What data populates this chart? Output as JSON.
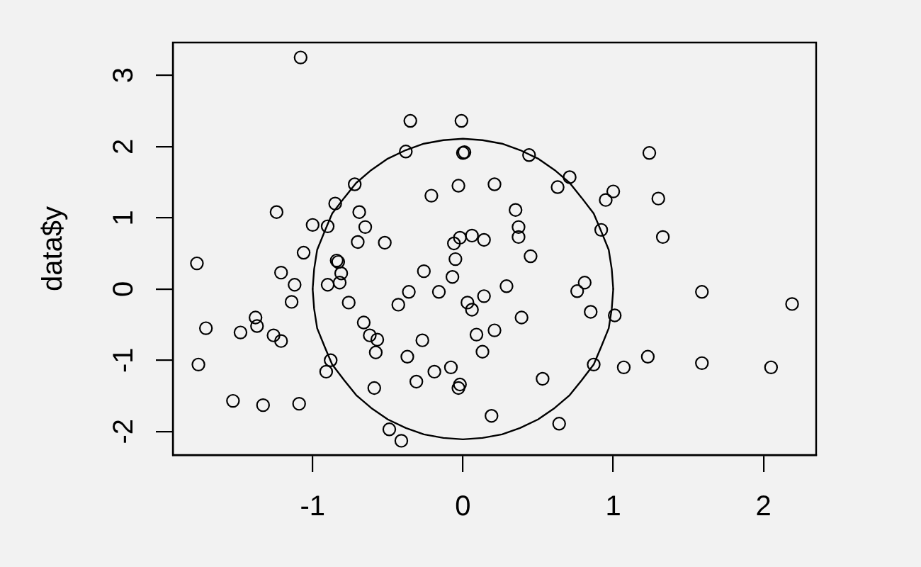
{
  "chart_data": {
    "type": "scatter",
    "ylabel": "data$y",
    "xlim": [
      -1.93,
      2.35
    ],
    "ylim": [
      -2.33,
      3.46
    ],
    "xticks": [
      -1,
      0,
      1,
      2
    ],
    "yticks": [
      -2,
      -1,
      0,
      1,
      2,
      3
    ],
    "marker": "circle",
    "series": [
      {
        "color": "#000000",
        "x": [
          -1.08,
          -0.35,
          -0.01,
          -0.38,
          0,
          0.01,
          -0.72,
          -0.21,
          -0.03,
          -1.24,
          -0.85,
          -0.69,
          -1.0,
          -0.9,
          -0.65,
          -0.7,
          -0.52,
          -1.06,
          -0.06,
          -0.02,
          0.44,
          1.24,
          0.71,
          0.63,
          0.21,
          1.0,
          0.95,
          1.3,
          0.35,
          0.37,
          0.37,
          0.92,
          1.33,
          0.06,
          0.14,
          -1.77,
          -1.21,
          -1.12,
          -1.14,
          -0.84,
          -0.83,
          -0.81,
          -0.82,
          -0.9,
          -0.76,
          -0.26,
          -0.36,
          -0.43,
          -0.16,
          -0.07,
          -0.05,
          0.03,
          0.06,
          -1.71,
          -1.48,
          -1.38,
          -1.37,
          -1.26,
          -1.21,
          -0.66,
          -0.62,
          -0.57,
          -0.58,
          -0.27,
          -0.37,
          -1.76,
          -0.88,
          -0.91,
          -0.08,
          -0.19,
          -0.31,
          -0.02,
          -0.03,
          -0.59,
          -1.53,
          -1.33,
          -1.09,
          -0.49,
          -0.41,
          0.45,
          0.29,
          0.14,
          0.81,
          0.76,
          0.85,
          1.01,
          0.39,
          1.59,
          2.19,
          0.21,
          0.09,
          0.13,
          0.87,
          1.07,
          1.23,
          1.59,
          2.05,
          0.53,
          0.19,
          0.64
        ],
        "values": [
          3.25,
          2.36,
          2.36,
          1.93,
          1.91,
          1.92,
          1.47,
          1.31,
          1.45,
          1.08,
          1.2,
          1.08,
          0.9,
          0.88,
          0.87,
          0.66,
          0.65,
          0.51,
          0.64,
          0.72,
          1.88,
          1.91,
          1.57,
          1.43,
          1.47,
          1.37,
          1.25,
          1.27,
          1.11,
          0.87,
          0.73,
          0.83,
          0.73,
          0.75,
          0.69,
          0.36,
          0.23,
          0.06,
          -0.18,
          0.4,
          0.38,
          0.22,
          0.09,
          0.06,
          -0.19,
          0.25,
          -0.04,
          -0.22,
          -0.04,
          0.17,
          0.42,
          -0.19,
          -0.29,
          -0.55,
          -0.61,
          -0.4,
          -0.52,
          -0.65,
          -0.73,
          -0.47,
          -0.65,
          -0.71,
          -0.89,
          -0.72,
          -0.95,
          -1.06,
          -1.0,
          -1.16,
          -1.1,
          -1.16,
          -1.3,
          -1.34,
          -1.39,
          -1.39,
          -1.57,
          -1.63,
          -1.61,
          -1.97,
          -2.13,
          0.46,
          0.04,
          -0.1,
          0.09,
          -0.03,
          -0.32,
          -0.37,
          -0.4,
          -0.04,
          -0.21,
          -0.58,
          -0.64,
          -0.88,
          -1.06,
          -1.1,
          -0.95,
          -1.04,
          -1.1,
          -1.26,
          -1.78,
          -1.89
        ]
      },
      {
        "type": "line",
        "color": "#000000",
        "marker": "none",
        "line_style": "solid",
        "x": [
          -1,
          -0.99,
          -0.97,
          -0.92,
          -0.87,
          -0.79,
          -0.71,
          -0.61,
          -0.5,
          -0.38,
          -0.26,
          -0.13,
          0,
          0.13,
          0.26,
          0.38,
          0.5,
          0.61,
          0.71,
          0.79,
          0.87,
          0.92,
          0.97,
          0.99,
          1
        ],
        "values": [
          0,
          0.28,
          0.55,
          0.81,
          1.06,
          1.28,
          1.49,
          1.67,
          1.83,
          1.95,
          2.04,
          2.09,
          2.11,
          2.09,
          2.04,
          1.95,
          1.83,
          1.67,
          1.49,
          1.28,
          1.06,
          0.81,
          0.55,
          0.28,
          0
        ]
      },
      {
        "type": "line",
        "color": "#000000",
        "marker": "none",
        "line_style": "solid",
        "x": [
          -1,
          -0.99,
          -0.97,
          -0.92,
          -0.87,
          -0.79,
          -0.71,
          -0.61,
          -0.5,
          -0.38,
          -0.26,
          -0.13,
          0,
          0.13,
          0.26,
          0.38,
          0.5,
          0.61,
          0.71,
          0.79,
          0.87,
          0.92,
          0.97,
          0.99,
          1
        ],
        "values": [
          0,
          -0.28,
          -0.55,
          -0.81,
          -1.06,
          -1.28,
          -1.49,
          -1.67,
          -1.83,
          -1.95,
          -2.04,
          -2.09,
          -2.11,
          -2.09,
          -2.04,
          -1.95,
          -1.83,
          -1.67,
          -1.49,
          -1.28,
          -1.06,
          -0.81,
          -0.55,
          -0.28,
          0
        ]
      }
    ]
  }
}
